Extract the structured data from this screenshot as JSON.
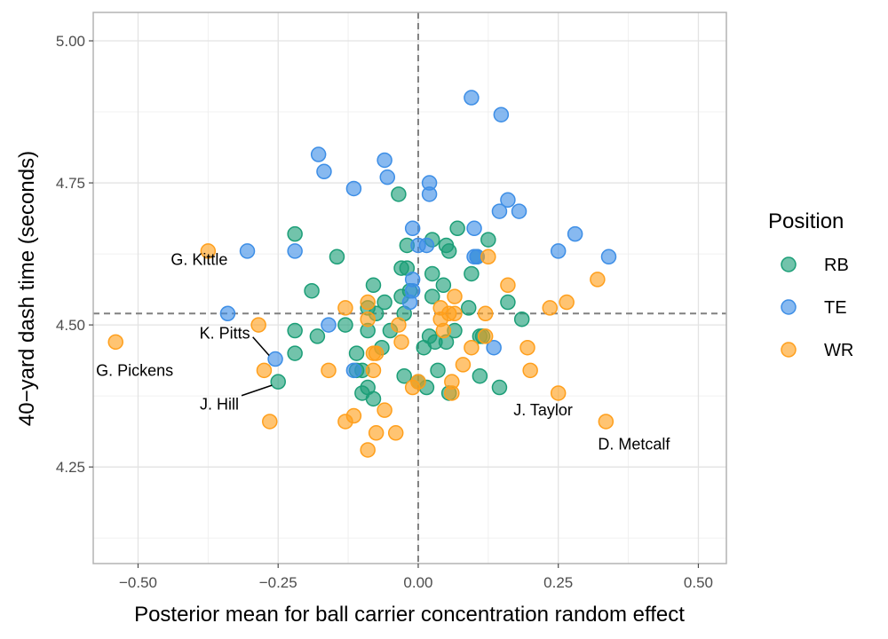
{
  "chart_data": {
    "type": "scatter",
    "title": "",
    "xlabel": "Posterior mean for ball carrier concentration random effect",
    "ylabel": "40−yard dash time (seconds)",
    "xlim": [
      -0.58,
      0.55
    ],
    "ylim": [
      4.08,
      5.05
    ],
    "xticks": [
      -0.5,
      -0.25,
      0.0,
      0.25,
      0.5
    ],
    "xtick_labels": [
      "−0.50",
      "−0.25",
      "0.00",
      "0.25",
      "0.50"
    ],
    "yticks": [
      4.25,
      4.5,
      4.75,
      5.0
    ],
    "ytick_labels": [
      "4.25",
      "4.50",
      "4.75",
      "5.00"
    ],
    "grid": true,
    "reference_lines": {
      "x": 0.0,
      "y": 4.52
    },
    "legend": {
      "title": "Position",
      "placement": "right"
    },
    "colors": {
      "RB": "#1b9e77",
      "TE": "#3d8ee6",
      "WR": "#ff9f1c"
    },
    "series": [
      {
        "name": "RB",
        "points": [
          [
            -0.22,
            4.66
          ],
          [
            -0.145,
            4.62
          ],
          [
            -0.19,
            4.56
          ],
          [
            -0.18,
            4.48
          ],
          [
            -0.22,
            4.49
          ],
          [
            -0.22,
            4.45
          ],
          [
            -0.25,
            4.4
          ],
          [
            -0.13,
            4.5
          ],
          [
            -0.1,
            4.42
          ],
          [
            -0.11,
            4.42
          ],
          [
            -0.11,
            4.45
          ],
          [
            -0.09,
            4.53
          ],
          [
            -0.09,
            4.49
          ],
          [
            -0.08,
            4.57
          ],
          [
            -0.075,
            4.52
          ],
          [
            -0.065,
            4.46
          ],
          [
            -0.06,
            4.54
          ],
          [
            -0.05,
            4.49
          ],
          [
            -0.035,
            4.73
          ],
          [
            -0.03,
            4.6
          ],
          [
            -0.02,
            4.6
          ],
          [
            -0.02,
            4.64
          ],
          [
            -0.025,
            4.52
          ],
          [
            -0.03,
            4.55
          ],
          [
            -0.015,
            4.56
          ],
          [
            -0.025,
            4.41
          ],
          [
            0.0,
            4.4
          ],
          [
            0.01,
            4.46
          ],
          [
            0.015,
            4.39
          ],
          [
            0.02,
            4.48
          ],
          [
            0.025,
            4.55
          ],
          [
            0.025,
            4.59
          ],
          [
            0.03,
            4.47
          ],
          [
            0.025,
            4.65
          ],
          [
            0.035,
            4.42
          ],
          [
            0.05,
            4.47
          ],
          [
            0.045,
            4.57
          ],
          [
            0.055,
            4.63
          ],
          [
            0.055,
            4.38
          ],
          [
            0.05,
            4.64
          ],
          [
            0.065,
            4.49
          ],
          [
            0.07,
            4.67
          ],
          [
            0.09,
            4.53
          ],
          [
            0.095,
            4.59
          ],
          [
            0.105,
            4.62
          ],
          [
            0.11,
            4.48
          ],
          [
            0.115,
            4.48
          ],
          [
            0.11,
            4.41
          ],
          [
            0.125,
            4.65
          ],
          [
            0.145,
            4.39
          ],
          [
            0.16,
            4.54
          ],
          [
            0.185,
            4.51
          ],
          [
            -0.1,
            4.38
          ],
          [
            -0.09,
            4.39
          ],
          [
            -0.08,
            4.37
          ]
        ]
      },
      {
        "name": "TE",
        "points": [
          [
            0.095,
            4.9
          ],
          [
            0.148,
            4.87
          ],
          [
            -0.178,
            4.8
          ],
          [
            -0.168,
            4.77
          ],
          [
            -0.115,
            4.74
          ],
          [
            -0.06,
            4.79
          ],
          [
            -0.055,
            4.76
          ],
          [
            0.02,
            4.75
          ],
          [
            0.02,
            4.73
          ],
          [
            -0.01,
            4.67
          ],
          [
            0.0,
            4.64
          ],
          [
            0.015,
            4.64
          ],
          [
            0.1,
            4.67
          ],
          [
            0.1,
            4.62
          ],
          [
            0.105,
            4.62
          ],
          [
            0.145,
            4.7
          ],
          [
            0.16,
            4.72
          ],
          [
            0.18,
            4.7
          ],
          [
            0.25,
            4.63
          ],
          [
            0.28,
            4.66
          ],
          [
            0.34,
            4.62
          ],
          [
            -0.305,
            4.63
          ],
          [
            -0.22,
            4.63
          ],
          [
            -0.01,
            4.58
          ],
          [
            -0.01,
            4.56
          ],
          [
            -0.015,
            4.54
          ],
          [
            -0.34,
            4.52
          ],
          [
            -0.16,
            4.5
          ],
          [
            -0.115,
            4.42
          ],
          [
            -0.255,
            4.44
          ],
          [
            0.135,
            4.46
          ]
        ]
      },
      {
        "name": "WR",
        "points": [
          [
            -0.375,
            4.63
          ],
          [
            -0.54,
            4.47
          ],
          [
            -0.285,
            4.5
          ],
          [
            -0.275,
            4.42
          ],
          [
            -0.265,
            4.33
          ],
          [
            -0.16,
            4.42
          ],
          [
            -0.13,
            4.53
          ],
          [
            -0.13,
            4.33
          ],
          [
            -0.115,
            4.34
          ],
          [
            -0.09,
            4.54
          ],
          [
            -0.09,
            4.51
          ],
          [
            -0.08,
            4.45
          ],
          [
            -0.075,
            4.45
          ],
          [
            -0.08,
            4.42
          ],
          [
            -0.075,
            4.31
          ],
          [
            -0.06,
            4.35
          ],
          [
            -0.09,
            4.28
          ],
          [
            -0.04,
            4.31
          ],
          [
            -0.035,
            4.5
          ],
          [
            -0.03,
            4.47
          ],
          [
            -0.01,
            4.39
          ],
          [
            0.0,
            4.4
          ],
          [
            0.04,
            4.53
          ],
          [
            0.04,
            4.51
          ],
          [
            0.045,
            4.49
          ],
          [
            0.055,
            4.52
          ],
          [
            0.06,
            4.4
          ],
          [
            0.06,
            4.38
          ],
          [
            0.065,
            4.52
          ],
          [
            0.065,
            4.55
          ],
          [
            0.08,
            4.43
          ],
          [
            0.095,
            4.46
          ],
          [
            0.12,
            4.48
          ],
          [
            0.12,
            4.52
          ],
          [
            0.125,
            4.62
          ],
          [
            0.16,
            4.57
          ],
          [
            0.195,
            4.46
          ],
          [
            0.2,
            4.42
          ],
          [
            0.235,
            4.53
          ],
          [
            0.265,
            4.54
          ],
          [
            0.25,
            4.38
          ],
          [
            0.32,
            4.58
          ],
          [
            0.335,
            4.33
          ]
        ]
      }
    ],
    "annotations": [
      {
        "text": "G. Kittle",
        "point": [
          -0.34,
          4.52
        ],
        "anchor": "end",
        "dx": 0.0,
        "dy": 0.095
      },
      {
        "text": "K. Pitts",
        "point": [
          -0.255,
          4.44
        ],
        "anchor": "end",
        "dx": -0.045,
        "dy": 0.045,
        "leader": true
      },
      {
        "text": "G. Pickens",
        "point": [
          -0.54,
          4.47
        ],
        "anchor": "start",
        "dx": -0.035,
        "dy": -0.05
      },
      {
        "text": "J. Hill",
        "point": [
          -0.25,
          4.4
        ],
        "anchor": "end",
        "dx": -0.07,
        "dy": -0.04,
        "leader": true
      },
      {
        "text": "J. Taylor",
        "point": [
          0.055,
          4.38
        ],
        "anchor": "start",
        "dx": 0.115,
        "dy": -0.03
      },
      {
        "text": "D. Metcalf",
        "point": [
          0.335,
          4.33
        ],
        "anchor": "middle",
        "dx": 0.05,
        "dy": -0.04
      }
    ]
  }
}
